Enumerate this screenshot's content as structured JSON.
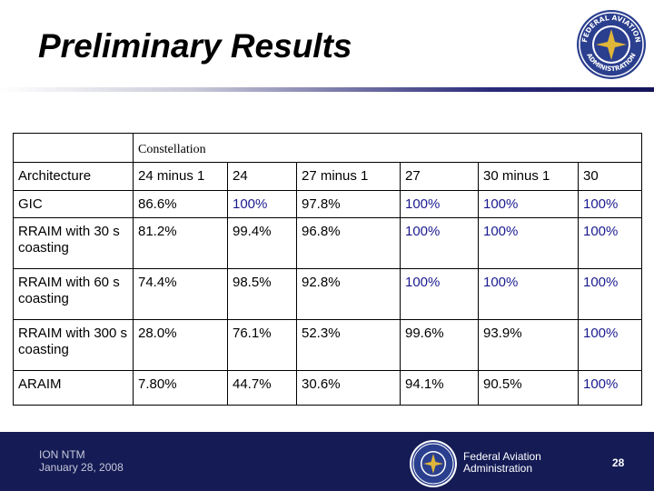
{
  "slide": {
    "title": "Preliminary Results",
    "constellation_label": "Constellation"
  },
  "table": {
    "header": [
      "Architecture",
      "24 minus 1",
      "24",
      "27 minus 1",
      "27",
      "30 minus 1",
      "30"
    ],
    "rows": [
      [
        "GIC",
        "86.6%",
        "100%",
        "97.8%",
        "100%",
        "100%",
        "100%"
      ],
      [
        "RRAIM with 30 s coasting",
        "81.2%",
        "99.4%",
        "96.8%",
        "100%",
        "100%",
        "100%"
      ],
      [
        "RRAIM with 60 s coasting",
        "74.4%",
        "98.5%",
        "92.8%",
        "100%",
        "100%",
        "100%"
      ],
      [
        "RRAIM with 300 s coasting",
        "28.0%",
        "76.1%",
        "52.3%",
        "99.6%",
        "93.9%",
        "100%"
      ],
      [
        "ARAIM",
        "7.80%",
        "44.7%",
        "30.6%",
        "94.1%",
        "90.5%",
        "100%"
      ]
    ]
  },
  "footer": {
    "event": "ION NTM",
    "date": "January 28, 2008",
    "agency_line1": "Federal Aviation",
    "agency_line2": "Administration",
    "page_number": "28"
  },
  "seal": {
    "top_text": "FEDERAL AVIATION",
    "bottom_text": "ADMINISTRATION"
  },
  "colors": {
    "highlight_blue": "#1a1a90",
    "footer_bg": "#141b55",
    "seal_blue": "#2b3f8f",
    "seal_gold": "#e0b63a"
  }
}
